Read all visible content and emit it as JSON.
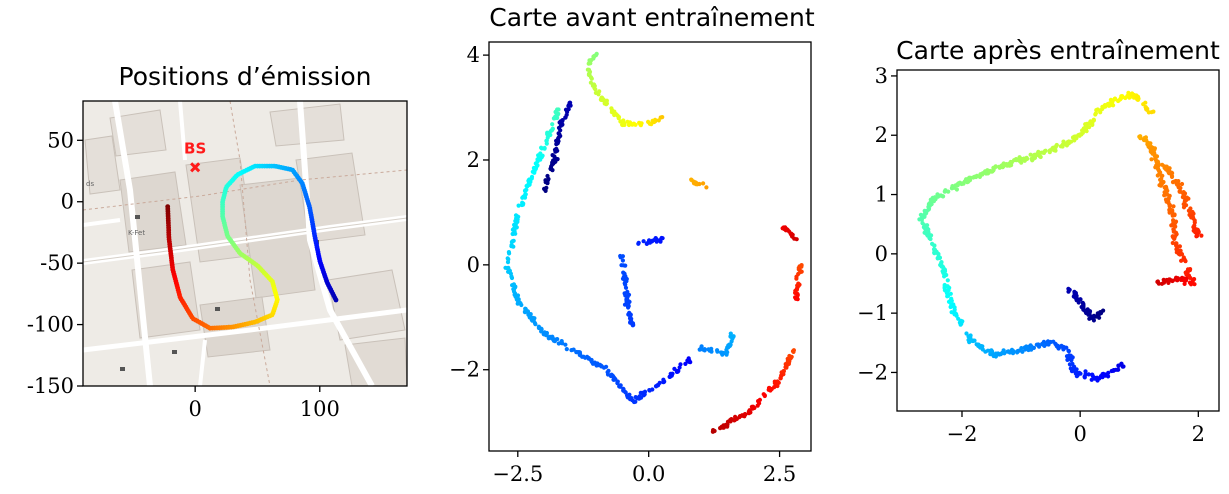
{
  "chart_data": [
    {
      "type": "line",
      "title": "Positions d’émission",
      "xlim": [
        -90,
        170
      ],
      "ylim": [
        -150,
        82
      ],
      "xticks": [
        0,
        100
      ],
      "yticks": [
        50,
        0,
        -50,
        -100,
        -150
      ],
      "background": "street map",
      "map_labels": [
        "K-Fet",
        "ds"
      ],
      "annotation": {
        "text": "BS",
        "x": 0,
        "y": 28,
        "color": "#ff1a1a"
      },
      "colormap": "jet",
      "trajectory": [
        [
          -22,
          -4
        ],
        [
          -21,
          -30
        ],
        [
          -18,
          -55
        ],
        [
          -12,
          -78
        ],
        [
          -2,
          -95
        ],
        [
          12,
          -103
        ],
        [
          30,
          -102
        ],
        [
          48,
          -98
        ],
        [
          62,
          -92
        ],
        [
          66,
          -80
        ],
        [
          62,
          -65
        ],
        [
          50,
          -52
        ],
        [
          36,
          -42
        ],
        [
          26,
          -28
        ],
        [
          22,
          -12
        ],
        [
          22,
          0
        ],
        [
          25,
          12
        ],
        [
          34,
          22
        ],
        [
          48,
          29
        ],
        [
          64,
          29
        ],
        [
          78,
          26
        ],
        [
          86,
          15
        ],
        [
          92,
          -5
        ],
        [
          96,
          -28
        ],
        [
          100,
          -48
        ],
        [
          106,
          -66
        ],
        [
          113,
          -80
        ]
      ]
    },
    {
      "type": "scatter",
      "title": "Carte avant entraînement",
      "xlim": [
        -3.05,
        3.1
      ],
      "ylim": [
        -3.55,
        4.25
      ],
      "xticks": [
        "−2.5",
        "0.0",
        "2.5"
      ],
      "yticks": [
        "4",
        "2",
        "0",
        "−2"
      ],
      "colormap": "jet",
      "segments": [
        {
          "name": "",
          "points": [
            [
              2.8,
              -1.6
            ],
            [
              2.5,
              -2.2
            ],
            [
              1.9,
              -2.8
            ],
            [
              1.2,
              -3.2
            ]
          ],
          "c_range": [
            0.8,
            0.95
          ]
        },
        {
          "name": "",
          "points": [
            [
              2.9,
              0.0
            ],
            [
              2.8,
              -0.7
            ]
          ],
          "c_range": [
            0.8,
            0.88
          ]
        },
        {
          "name": "",
          "points": [
            [
              2.5,
              0.8
            ],
            [
              2.8,
              0.5
            ]
          ],
          "c_range": [
            0.88,
            0.92
          ]
        },
        {
          "name": "",
          "points": [
            [
              0.3,
              2.8
            ],
            [
              0.0,
              2.7
            ],
            [
              -0.5,
              2.7
            ],
            [
              -1.0,
              3.3
            ],
            [
              -1.2,
              3.8
            ],
            [
              -1.0,
              4.0
            ]
          ],
          "c_range": [
            0.68,
            0.5
          ]
        },
        {
          "name": "",
          "points": [
            [
              -1.7,
              3.0
            ],
            [
              -1.9,
              2.5
            ],
            [
              -2.1,
              2.0
            ],
            [
              -2.5,
              1.0
            ],
            [
              -2.7,
              0.0
            ],
            [
              -2.5,
              -0.7
            ],
            [
              -2.0,
              -1.3
            ],
            [
              -1.5,
              -1.6
            ],
            [
              -0.8,
              -2.0
            ],
            [
              -0.3,
              -2.6
            ],
            [
              0.3,
              -2.2
            ],
            [
              0.8,
              -1.8
            ]
          ],
          "c_range": [
            0.44,
            0.12
          ]
        },
        {
          "name": "",
          "points": [
            [
              -1.5,
              3.1
            ],
            [
              -1.7,
              2.6
            ],
            [
              -1.8,
              2.0
            ],
            [
              -2.0,
              1.4
            ]
          ],
          "c_range": [
            0.05,
            0.0
          ]
        },
        {
          "name": "",
          "points": [
            [
              1.0,
              -1.6
            ],
            [
              1.5,
              -1.7
            ],
            [
              1.6,
              -1.3
            ]
          ],
          "c_range": [
            0.25,
            0.3
          ]
        },
        {
          "name": "",
          "points": [
            [
              -0.3,
              -1.2
            ],
            [
              -0.4,
              -0.8
            ],
            [
              -0.5,
              0.2
            ]
          ],
          "c_range": [
            0.18,
            0.2
          ]
        },
        {
          "name": "",
          "points": [
            [
              0.3,
              0.5
            ],
            [
              -0.2,
              0.4
            ]
          ],
          "c_range": [
            0.14,
            0.16
          ]
        },
        {
          "name": "",
          "points": [
            [
              0.8,
              1.6
            ],
            [
              1.1,
              1.5
            ]
          ],
          "c_range": [
            0.7,
            0.72
          ]
        }
      ]
    },
    {
      "type": "scatter",
      "title": "Carte après entraînement",
      "xlim": [
        -3.1,
        2.35
      ],
      "ylim": [
        -2.65,
        3.1
      ],
      "xticks": [
        "−2",
        "0",
        "2"
      ],
      "yticks": [
        "3",
        "2",
        "1",
        "0",
        "−1",
        "−2"
      ],
      "colormap": "jet",
      "segments": [
        {
          "name": "",
          "points": [
            [
              0.4,
              -1.0
            ],
            [
              0.2,
              -1.1
            ],
            [
              0.0,
              -0.8
            ],
            [
              -0.2,
              -0.6
            ]
          ],
          "c_range": [
            0.0,
            0.05
          ]
        },
        {
          "name": "",
          "points": [
            [
              0.7,
              -1.9
            ],
            [
              0.3,
              -2.1
            ],
            [
              -0.1,
              -2.0
            ],
            [
              -0.2,
              -1.6
            ],
            [
              -0.6,
              -1.5
            ],
            [
              -0.9,
              -1.6
            ],
            [
              -1.5,
              -1.7
            ],
            [
              -1.9,
              -1.4
            ]
          ],
          "c_range": [
            0.1,
            0.32
          ]
        },
        {
          "name": "",
          "points": [
            [
              -2.0,
              -1.2
            ],
            [
              -2.2,
              -0.8
            ],
            [
              -2.3,
              -0.3
            ],
            [
              -2.5,
              0.2
            ],
            [
              -2.7,
              0.6
            ],
            [
              -2.5,
              0.9
            ],
            [
              -2.0,
              1.2
            ],
            [
              -1.3,
              1.5
            ],
            [
              -0.6,
              1.7
            ],
            [
              0.0,
              2.0
            ],
            [
              0.4,
              2.5
            ],
            [
              0.9,
              2.7
            ],
            [
              1.2,
              2.4
            ]
          ],
          "c_range": [
            0.35,
            0.66
          ]
        },
        {
          "name": "",
          "points": [
            [
              1.0,
              2.0
            ],
            [
              1.2,
              1.8
            ],
            [
              1.4,
              1.2
            ],
            [
              1.6,
              0.6
            ],
            [
              1.6,
              0.2
            ],
            [
              1.8,
              -0.2
            ],
            [
              1.9,
              -0.5
            ],
            [
              1.7,
              -0.4
            ],
            [
              1.3,
              -0.5
            ]
          ],
          "c_range": [
            0.7,
            0.92
          ]
        },
        {
          "name": "",
          "points": [
            [
              1.4,
              1.5
            ],
            [
              1.7,
              1.1
            ],
            [
              1.9,
              0.6
            ],
            [
              2.0,
              0.3
            ]
          ],
          "c_range": [
            0.74,
            0.85
          ]
        }
      ]
    }
  ]
}
